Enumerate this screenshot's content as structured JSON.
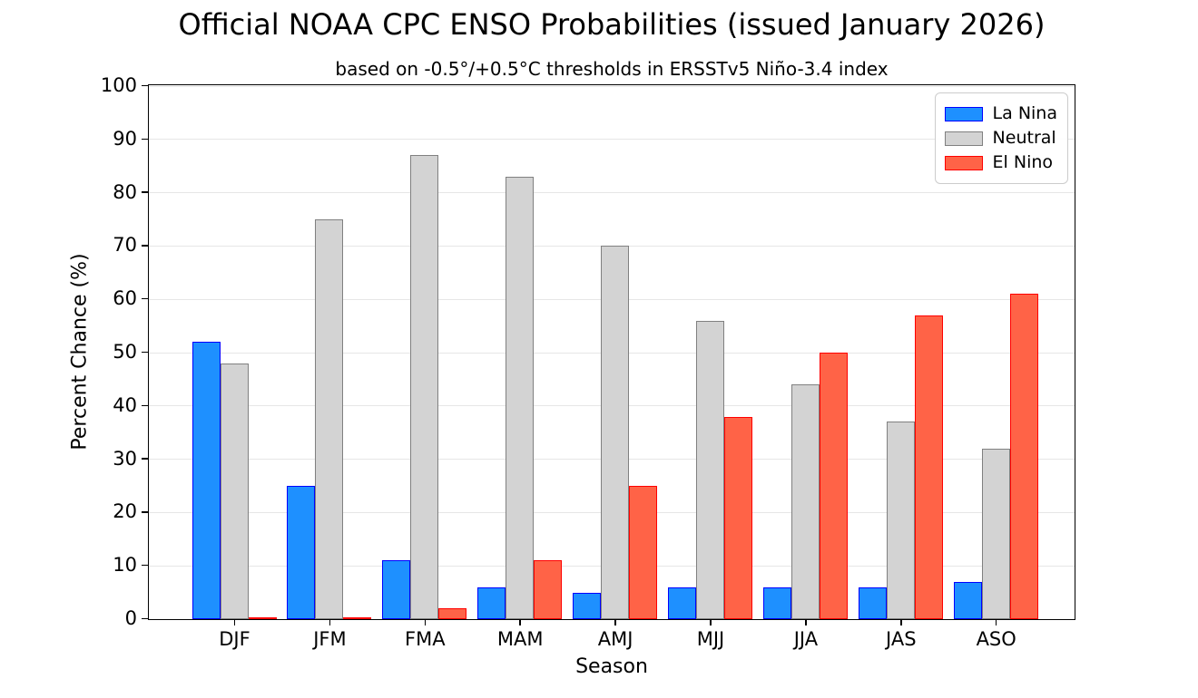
{
  "chart_data": {
    "type": "bar",
    "title": "Official NOAA CPC ENSO Probabilities (issued January 2026)",
    "subtitle": "based on -0.5°/+0.5°C thresholds in ERSSTv5 Niño-3.4 index",
    "xlabel": "Season",
    "ylabel": "Percent Chance (%)",
    "categories": [
      "DJF",
      "JFM",
      "FMA",
      "MAM",
      "AMJ",
      "MJJ",
      "JJA",
      "JAS",
      "ASO"
    ],
    "series": [
      {
        "name": "La Nina",
        "fill": "#1e90ff",
        "edge": "#0000ff",
        "values": [
          52,
          25,
          11,
          6,
          5,
          6,
          6,
          6,
          7
        ]
      },
      {
        "name": "Neutral",
        "fill": "#d3d3d3",
        "edge": "#808080",
        "values": [
          48,
          75,
          87,
          83,
          70,
          56,
          44,
          37,
          32
        ]
      },
      {
        "name": "El Nino",
        "fill": "#ff6347",
        "edge": "#ff0000",
        "values": [
          0,
          0,
          2,
          11,
          25,
          38,
          50,
          57,
          61
        ]
      }
    ],
    "ylim": [
      0,
      100
    ],
    "ytick_step": 10,
    "grid": "horizontal",
    "legend_position": "upper right",
    "axis_color": "#000000",
    "grid_color": "#e6e6e6"
  }
}
